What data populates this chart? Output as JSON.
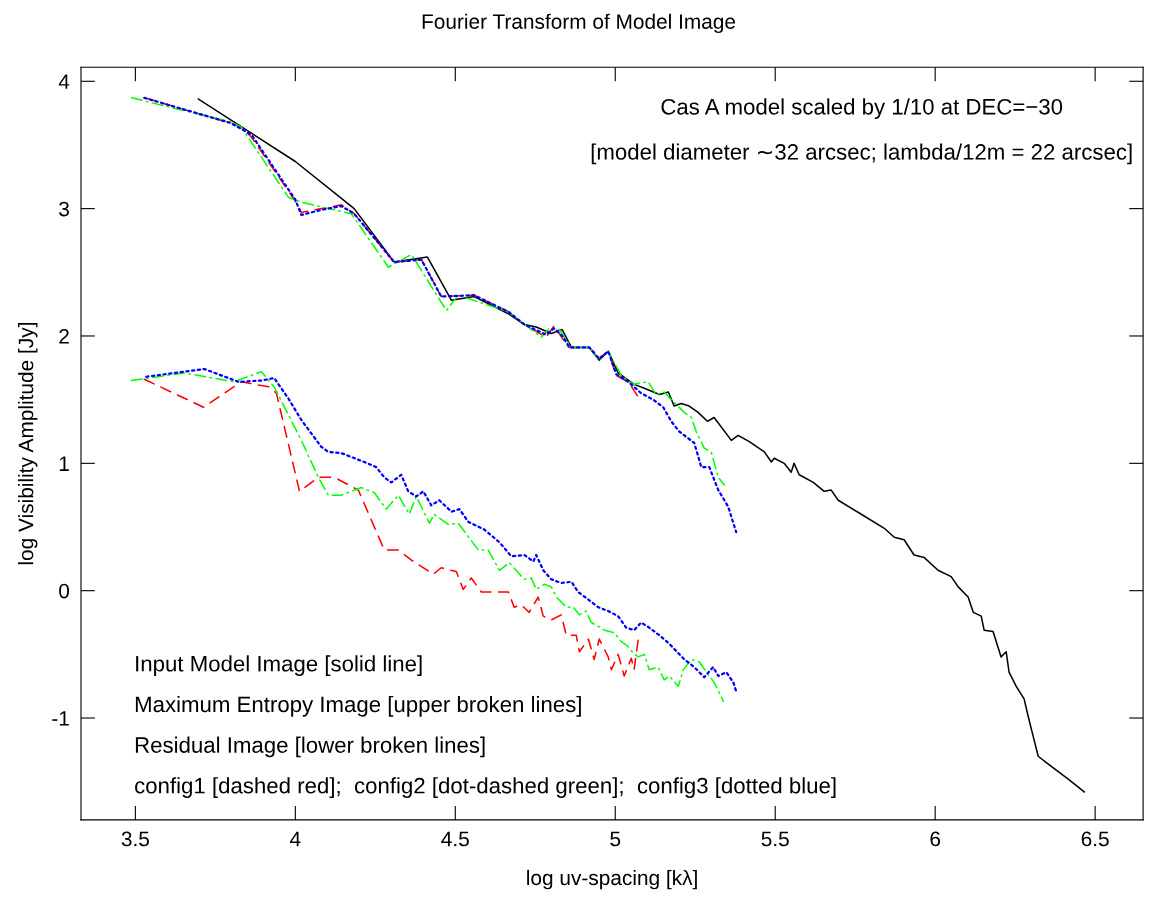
{
  "chart_data": {
    "type": "line",
    "title": "Fourier Transform of Model Image",
    "xlabel": "log uv-spacing [kλ]",
    "ylabel": "log Visibility Amplitude [Jy]",
    "xlim": [
      3.33,
      6.65
    ],
    "ylim": [
      -1.8,
      4.11
    ],
    "xticks": [
      3.5,
      4,
      4.5,
      5,
      5.5,
      6,
      6.5
    ],
    "yticks": [
      -1,
      0,
      1,
      2,
      3,
      4
    ],
    "grid": false,
    "marker": "none",
    "annotations": [
      "Cas A model scaled by 1/10 at DEC=−30",
      "[model diameter ∼32 arcsec; lambda/12m = 22 arcsec]",
      "Input Model Image [solid line]",
      "Maximum Entropy Image [upper broken lines]",
      "Residual Image [lower broken lines]",
      "config1 [dashed red];  config2 [dot-dashed green];  config3 [dotted blue]"
    ],
    "series": [
      {
        "color": "#000000",
        "line_style": "solid",
        "x": [
          3.697,
          4.0,
          4.184,
          4.309,
          4.413,
          4.488,
          4.559,
          4.669,
          4.716,
          4.753,
          4.8,
          4.834,
          4.863,
          4.919,
          4.95,
          4.978,
          5.009,
          5.059,
          5.091,
          5.138,
          5.166,
          5.184,
          5.206,
          5.231,
          5.259,
          5.288,
          5.309,
          5.363,
          5.384,
          5.419,
          5.466,
          5.488,
          5.497,
          5.528,
          5.55,
          5.559,
          5.575,
          5.619,
          5.653,
          5.675,
          5.697,
          5.769,
          5.841,
          5.872,
          5.903,
          5.934,
          5.966,
          6.009,
          6.05,
          6.072,
          6.103,
          6.119,
          6.144,
          6.153,
          6.181,
          6.206,
          6.222,
          6.231,
          6.253,
          6.278,
          6.291,
          6.309,
          6.322,
          6.363,
          6.416,
          6.466
        ],
        "values": [
          3.86,
          3.37,
          3.0,
          2.58,
          2.62,
          2.28,
          2.31,
          2.17,
          2.09,
          2.07,
          2.02,
          2.05,
          1.91,
          1.91,
          1.81,
          1.88,
          1.71,
          1.62,
          1.59,
          1.54,
          1.56,
          1.45,
          1.47,
          1.45,
          1.4,
          1.33,
          1.36,
          1.18,
          1.22,
          1.17,
          1.09,
          1.01,
          1.04,
          1.0,
          0.93,
          1.0,
          0.91,
          0.85,
          0.78,
          0.79,
          0.71,
          0.6,
          0.49,
          0.42,
          0.4,
          0.28,
          0.26,
          0.16,
          0.11,
          0.03,
          -0.05,
          -0.17,
          -0.2,
          -0.31,
          -0.32,
          -0.52,
          -0.48,
          -0.64,
          -0.75,
          -0.85,
          -0.99,
          -1.17,
          -1.3,
          -1.38,
          -1.48,
          -1.58
        ]
      },
      {
        "color": "#ff0000",
        "line_style": "dashed",
        "x": [
          3.528,
          3.8,
          3.831,
          3.863,
          3.997,
          4.019,
          4.144,
          4.184,
          4.309,
          4.394,
          4.456,
          4.559,
          4.666,
          4.716,
          4.784,
          4.809,
          4.838,
          4.856,
          4.919,
          4.95,
          4.978,
          5.003,
          5.041,
          5.072
        ],
        "values": [
          3.87,
          3.67,
          3.64,
          3.56,
          3.07,
          2.97,
          3.03,
          2.96,
          2.58,
          2.6,
          2.31,
          2.32,
          2.19,
          2.09,
          1.99,
          2.08,
          1.97,
          1.91,
          1.91,
          1.83,
          1.88,
          1.69,
          1.64,
          1.52
        ]
      },
      {
        "color": "#00ff00",
        "line_style": "dashdot",
        "x": [
          3.488,
          3.8,
          3.831,
          3.978,
          4.019,
          4.175,
          4.291,
          4.363,
          4.472,
          4.509,
          4.666,
          4.769,
          4.794,
          4.825,
          4.863,
          4.919,
          4.95,
          4.978,
          5.019,
          5.056,
          5.103,
          5.128,
          5.153,
          5.175,
          5.216,
          5.238,
          5.253,
          5.278,
          5.3,
          5.322,
          5.341
        ],
        "values": [
          3.87,
          3.68,
          3.64,
          3.09,
          3.05,
          2.96,
          2.54,
          2.64,
          2.2,
          2.32,
          2.19,
          1.99,
          2.06,
          2.05,
          1.91,
          1.91,
          1.81,
          1.88,
          1.69,
          1.62,
          1.64,
          1.54,
          1.56,
          1.5,
          1.4,
          1.36,
          1.25,
          1.12,
          1.09,
          0.89,
          0.83
        ]
      },
      {
        "color": "#0000ff",
        "line_style": "dotted",
        "x": [
          3.528,
          3.8,
          3.863,
          4.0,
          4.019,
          4.081,
          4.144,
          4.184,
          4.309,
          4.394,
          4.456,
          4.559,
          4.666,
          4.716,
          4.784,
          4.809,
          4.838,
          4.856,
          4.919,
          4.95,
          4.978,
          5.003,
          5.041,
          5.081,
          5.119,
          5.15,
          5.175,
          5.2,
          5.247,
          5.269,
          5.294,
          5.322,
          5.353,
          5.378
        ],
        "values": [
          3.87,
          3.67,
          3.58,
          3.07,
          2.95,
          2.99,
          3.02,
          2.96,
          2.58,
          2.6,
          2.31,
          2.32,
          2.19,
          2.09,
          2.01,
          2.06,
          1.99,
          1.91,
          1.91,
          1.82,
          1.88,
          1.7,
          1.64,
          1.55,
          1.5,
          1.44,
          1.33,
          1.25,
          1.16,
          0.97,
          0.97,
          0.79,
          0.66,
          0.46
        ]
      },
      {
        "color": "#ff0000",
        "line_style": "dashed",
        "x": [
          3.528,
          3.713,
          3.831,
          3.919,
          3.941,
          4.013,
          4.072,
          4.122,
          4.197,
          4.278,
          4.322,
          4.363,
          4.431,
          4.456,
          4.503,
          4.525,
          4.55,
          4.581,
          4.634,
          4.666,
          4.684,
          4.706,
          4.731,
          4.759,
          4.775,
          4.8,
          4.831,
          4.847,
          4.878,
          4.888,
          4.916,
          4.934,
          4.95,
          4.978,
          4.988,
          5.009,
          5.028,
          5.05,
          5.059,
          5.072
        ],
        "values": [
          1.66,
          1.44,
          1.64,
          1.6,
          1.55,
          0.78,
          0.89,
          0.89,
          0.79,
          0.32,
          0.32,
          0.24,
          0.13,
          0.18,
          0.15,
          0.01,
          0.1,
          -0.01,
          -0.01,
          -0.01,
          -0.13,
          -0.11,
          -0.17,
          -0.05,
          -0.2,
          -0.23,
          -0.19,
          -0.35,
          -0.35,
          -0.48,
          -0.38,
          -0.54,
          -0.38,
          -0.52,
          -0.62,
          -0.5,
          -0.67,
          -0.53,
          -0.62,
          -0.38
        ]
      },
      {
        "color": "#00ff00",
        "line_style": "dashdot",
        "x": [
          3.488,
          3.653,
          3.809,
          3.894,
          3.934,
          4.019,
          4.072,
          4.103,
          4.144,
          4.206,
          4.247,
          4.284,
          4.322,
          4.356,
          4.378,
          4.419,
          4.434,
          4.478,
          4.509,
          4.572,
          4.603,
          4.638,
          4.669,
          4.697,
          4.716,
          4.738,
          4.753,
          4.778,
          4.8,
          4.816,
          4.847,
          4.869,
          4.888,
          4.909,
          4.925,
          4.947,
          4.966,
          4.997,
          5.019,
          5.041,
          5.056,
          5.072,
          5.091,
          5.106,
          5.134,
          5.153,
          5.169,
          5.197,
          5.213,
          5.238,
          5.263,
          5.291,
          5.309,
          5.331,
          5.338
        ],
        "values": [
          1.65,
          1.71,
          1.64,
          1.72,
          1.6,
          1.18,
          0.89,
          0.75,
          0.75,
          0.81,
          0.77,
          0.64,
          0.75,
          0.6,
          0.74,
          0.53,
          0.6,
          0.52,
          0.53,
          0.32,
          0.32,
          0.16,
          0.22,
          0.14,
          0.09,
          0.1,
          0.01,
          0.05,
          0.03,
          -0.05,
          -0.13,
          -0.13,
          -0.19,
          -0.16,
          -0.25,
          -0.28,
          -0.31,
          -0.33,
          -0.4,
          -0.44,
          -0.49,
          -0.52,
          -0.5,
          -0.62,
          -0.6,
          -0.7,
          -0.67,
          -0.75,
          -0.62,
          -0.54,
          -0.56,
          -0.66,
          -0.72,
          -0.83,
          -0.87
        ]
      },
      {
        "color": "#0000ff",
        "line_style": "dotted",
        "x": [
          3.534,
          3.716,
          3.822,
          3.894,
          3.934,
          3.978,
          4.019,
          4.081,
          4.103,
          4.144,
          4.216,
          4.253,
          4.278,
          4.3,
          4.331,
          4.353,
          4.378,
          4.4,
          4.425,
          4.45,
          4.488,
          4.513,
          4.541,
          4.591,
          4.638,
          4.675,
          4.716,
          4.744,
          4.753,
          4.775,
          4.8,
          4.831,
          4.863,
          4.884,
          4.916,
          4.947,
          4.978,
          5.009,
          5.034,
          5.059,
          5.081,
          5.106,
          5.138,
          5.166,
          5.197,
          5.216,
          5.247,
          5.278,
          5.306,
          5.322,
          5.347,
          5.369,
          5.378
        ],
        "values": [
          1.68,
          1.74,
          1.64,
          1.65,
          1.67,
          1.51,
          1.34,
          1.13,
          1.09,
          1.08,
          1.01,
          0.97,
          0.89,
          0.85,
          0.91,
          0.78,
          0.74,
          0.78,
          0.67,
          0.71,
          0.62,
          0.64,
          0.54,
          0.48,
          0.38,
          0.27,
          0.28,
          0.23,
          0.28,
          0.16,
          0.09,
          0.06,
          0.07,
          -0.01,
          -0.07,
          -0.13,
          -0.16,
          -0.2,
          -0.29,
          -0.31,
          -0.25,
          -0.29,
          -0.35,
          -0.41,
          -0.49,
          -0.54,
          -0.6,
          -0.68,
          -0.6,
          -0.67,
          -0.64,
          -0.72,
          -0.79
        ]
      }
    ]
  }
}
